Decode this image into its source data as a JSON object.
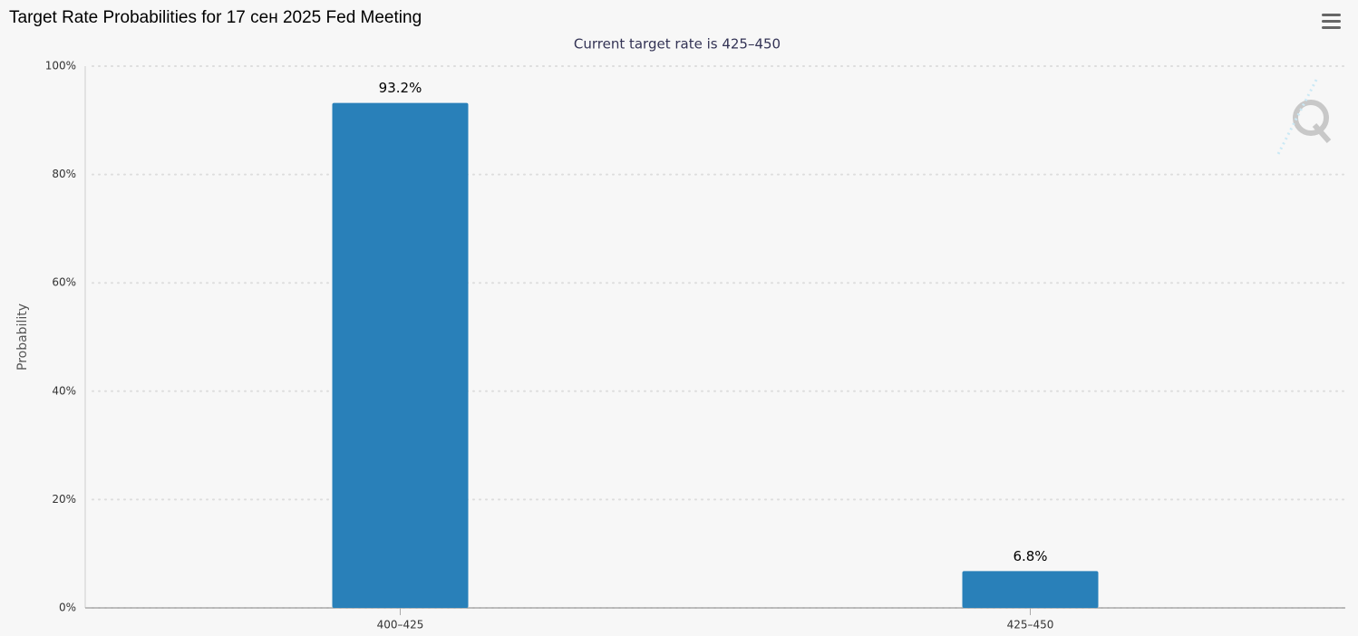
{
  "chart_data": {
    "type": "bar",
    "title": "Target Rate Probabilities for 17 сен 2025 Fed Meeting",
    "subtitle": "Current target rate is 425–450",
    "y_label": "Probability",
    "categories": [
      "400–425",
      "425–450"
    ],
    "values": [
      93.2,
      6.8
    ],
    "value_labels": [
      "93.2%",
      "6.8%"
    ],
    "color": "#2980b9",
    "ylim": [
      0,
      100
    ],
    "yticks": [
      {
        "value": 0,
        "label": "0%"
      },
      {
        "value": 20,
        "label": "20%"
      },
      {
        "value": 40,
        "label": "40%"
      },
      {
        "value": 60,
        "label": "60%"
      },
      {
        "value": 80,
        "label": "80%"
      },
      {
        "value": 100,
        "label": "100%"
      }
    ],
    "grid": true
  }
}
